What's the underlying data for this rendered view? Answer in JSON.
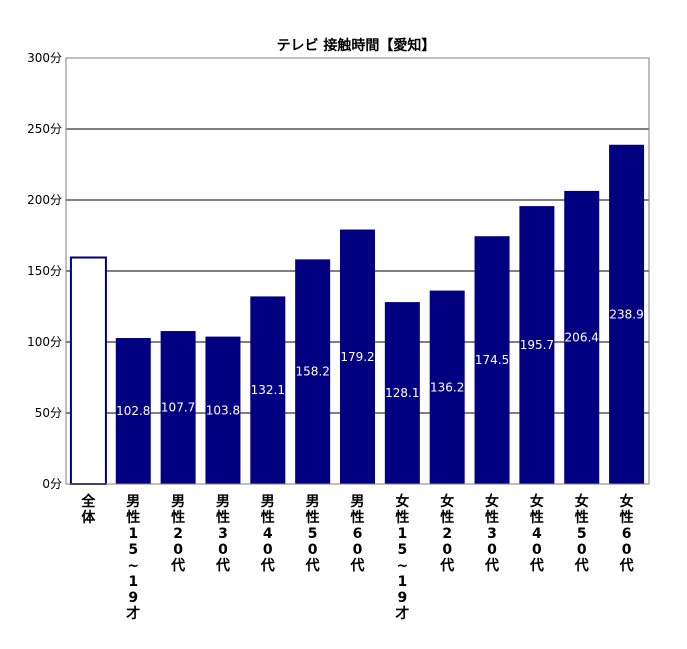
{
  "chart_data": {
    "type": "bar",
    "title": "テレビ 接触時間【愛知】",
    "categories": [
      "全体",
      "男性15~19才",
      "男性20代",
      "男性30代",
      "男性40代",
      "男性50代",
      "男性60代",
      "女性15~19才",
      "女性20代",
      "女性30代",
      "女性40代",
      "女性50代",
      "女性60代"
    ],
    "values": [
      159.5,
      102.8,
      107.7,
      103.8,
      132.1,
      158.2,
      179.2,
      128.1,
      136.2,
      174.5,
      195.7,
      206.4,
      238.9
    ],
    "data_labels": [
      "",
      "102.8",
      "107.7",
      "103.8",
      "132.1",
      "158.2",
      "179.2",
      "128.1",
      "136.2",
      "174.5",
      "195.7",
      "206.4",
      "238.9"
    ],
    "y_ticks": [
      "0分",
      "50分",
      "100分",
      "150分",
      "200分",
      "250分",
      "300分"
    ],
    "ylim": [
      0,
      300
    ],
    "grid": true,
    "colors": {
      "bar": "#000080",
      "highlight_fill": "#ffffff",
      "highlight_stroke": "#000080",
      "label": "#ffffff"
    }
  }
}
